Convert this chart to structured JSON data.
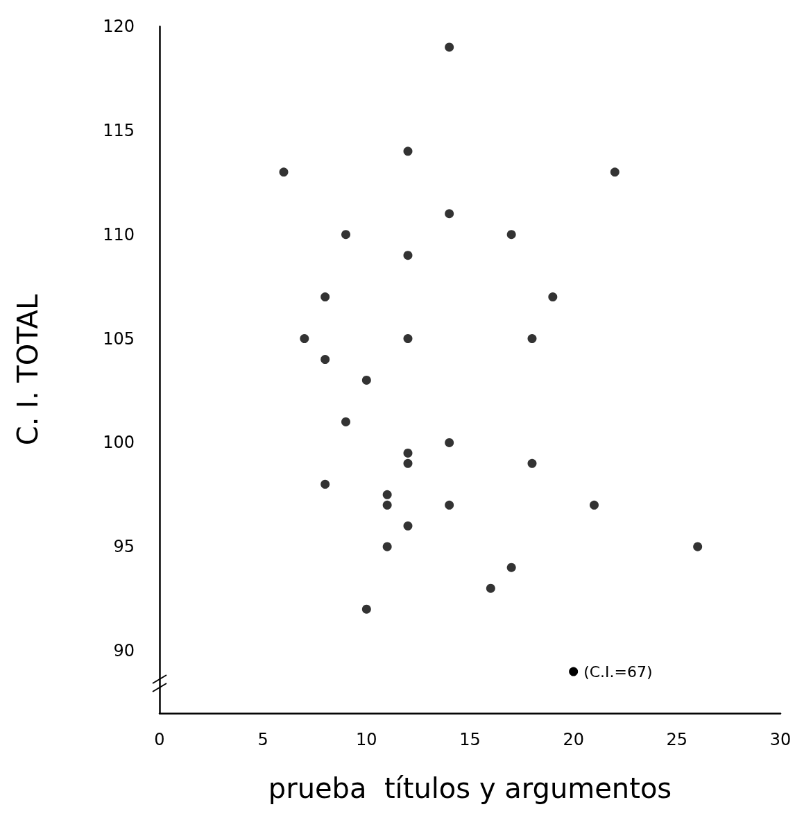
{
  "chart_data": {
    "type": "scatter",
    "xlabel": "prueba  títulos y argumentos",
    "ylabel": "C. I. TOTAL",
    "x": [
      6,
      14,
      12,
      22,
      14,
      9,
      17,
      12,
      8,
      19,
      7,
      12,
      18,
      8,
      10,
      9,
      14,
      12,
      12,
      18,
      8,
      11,
      11,
      14,
      21,
      12,
      11,
      26,
      17,
      16,
      10
    ],
    "values": [
      113,
      119,
      114,
      113,
      111,
      110,
      110,
      109,
      107,
      107,
      105,
      105,
      105,
      104,
      103,
      101,
      100,
      99.5,
      99,
      99,
      98,
      97.5,
      97,
      97,
      97,
      96,
      95,
      95,
      94,
      93,
      92
    ],
    "color": "#000000",
    "marker": "circle",
    "xlim": [
      0,
      30
    ],
    "xticks": [
      0,
      5,
      10,
      15,
      20,
      25,
      30
    ],
    "ylim": [
      87,
      120
    ],
    "yticks": [
      90,
      95,
      100,
      105,
      110,
      115,
      120
    ],
    "grid": false,
    "annotations": [
      {
        "text": "(C.I.=67)",
        "x": 20,
        "y": 89
      }
    ]
  }
}
